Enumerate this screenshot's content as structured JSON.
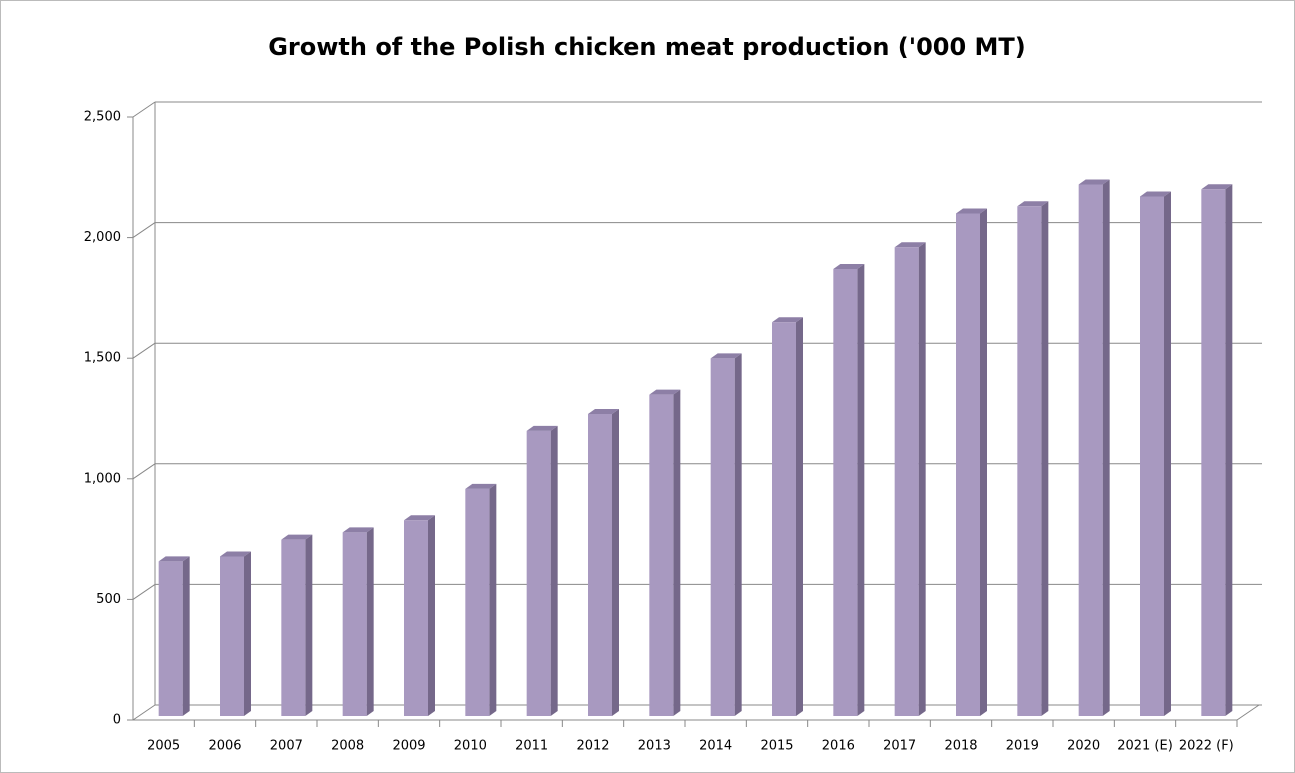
{
  "chart_data": {
    "type": "bar3d",
    "title": "Growth of the Polish chicken meat production ('000 MT)",
    "categories": [
      "2005",
      "2006",
      "2007",
      "2008",
      "2009",
      "2010",
      "2011",
      "2012",
      "2013",
      "2014",
      "2015",
      "2016",
      "2017",
      "2018",
      "2019",
      "2020",
      "2021 (E)",
      "2022 (F)"
    ],
    "values": [
      640,
      660,
      730,
      760,
      810,
      940,
      1180,
      1250,
      1330,
      1480,
      1630,
      1850,
      1940,
      2080,
      2110,
      2200,
      2150,
      2180
    ],
    "color": "#a899c0",
    "ylim": [
      0,
      2500
    ],
    "yticks": [
      0,
      500,
      {
        "value": 1000,
        "label": "1,000"
      },
      {
        "value": 1500,
        "label": "1,500"
      },
      {
        "value": 2000,
        "label": "2,000"
      },
      {
        "value": 2500,
        "label": "2,500"
      }
    ],
    "grid": true
  }
}
